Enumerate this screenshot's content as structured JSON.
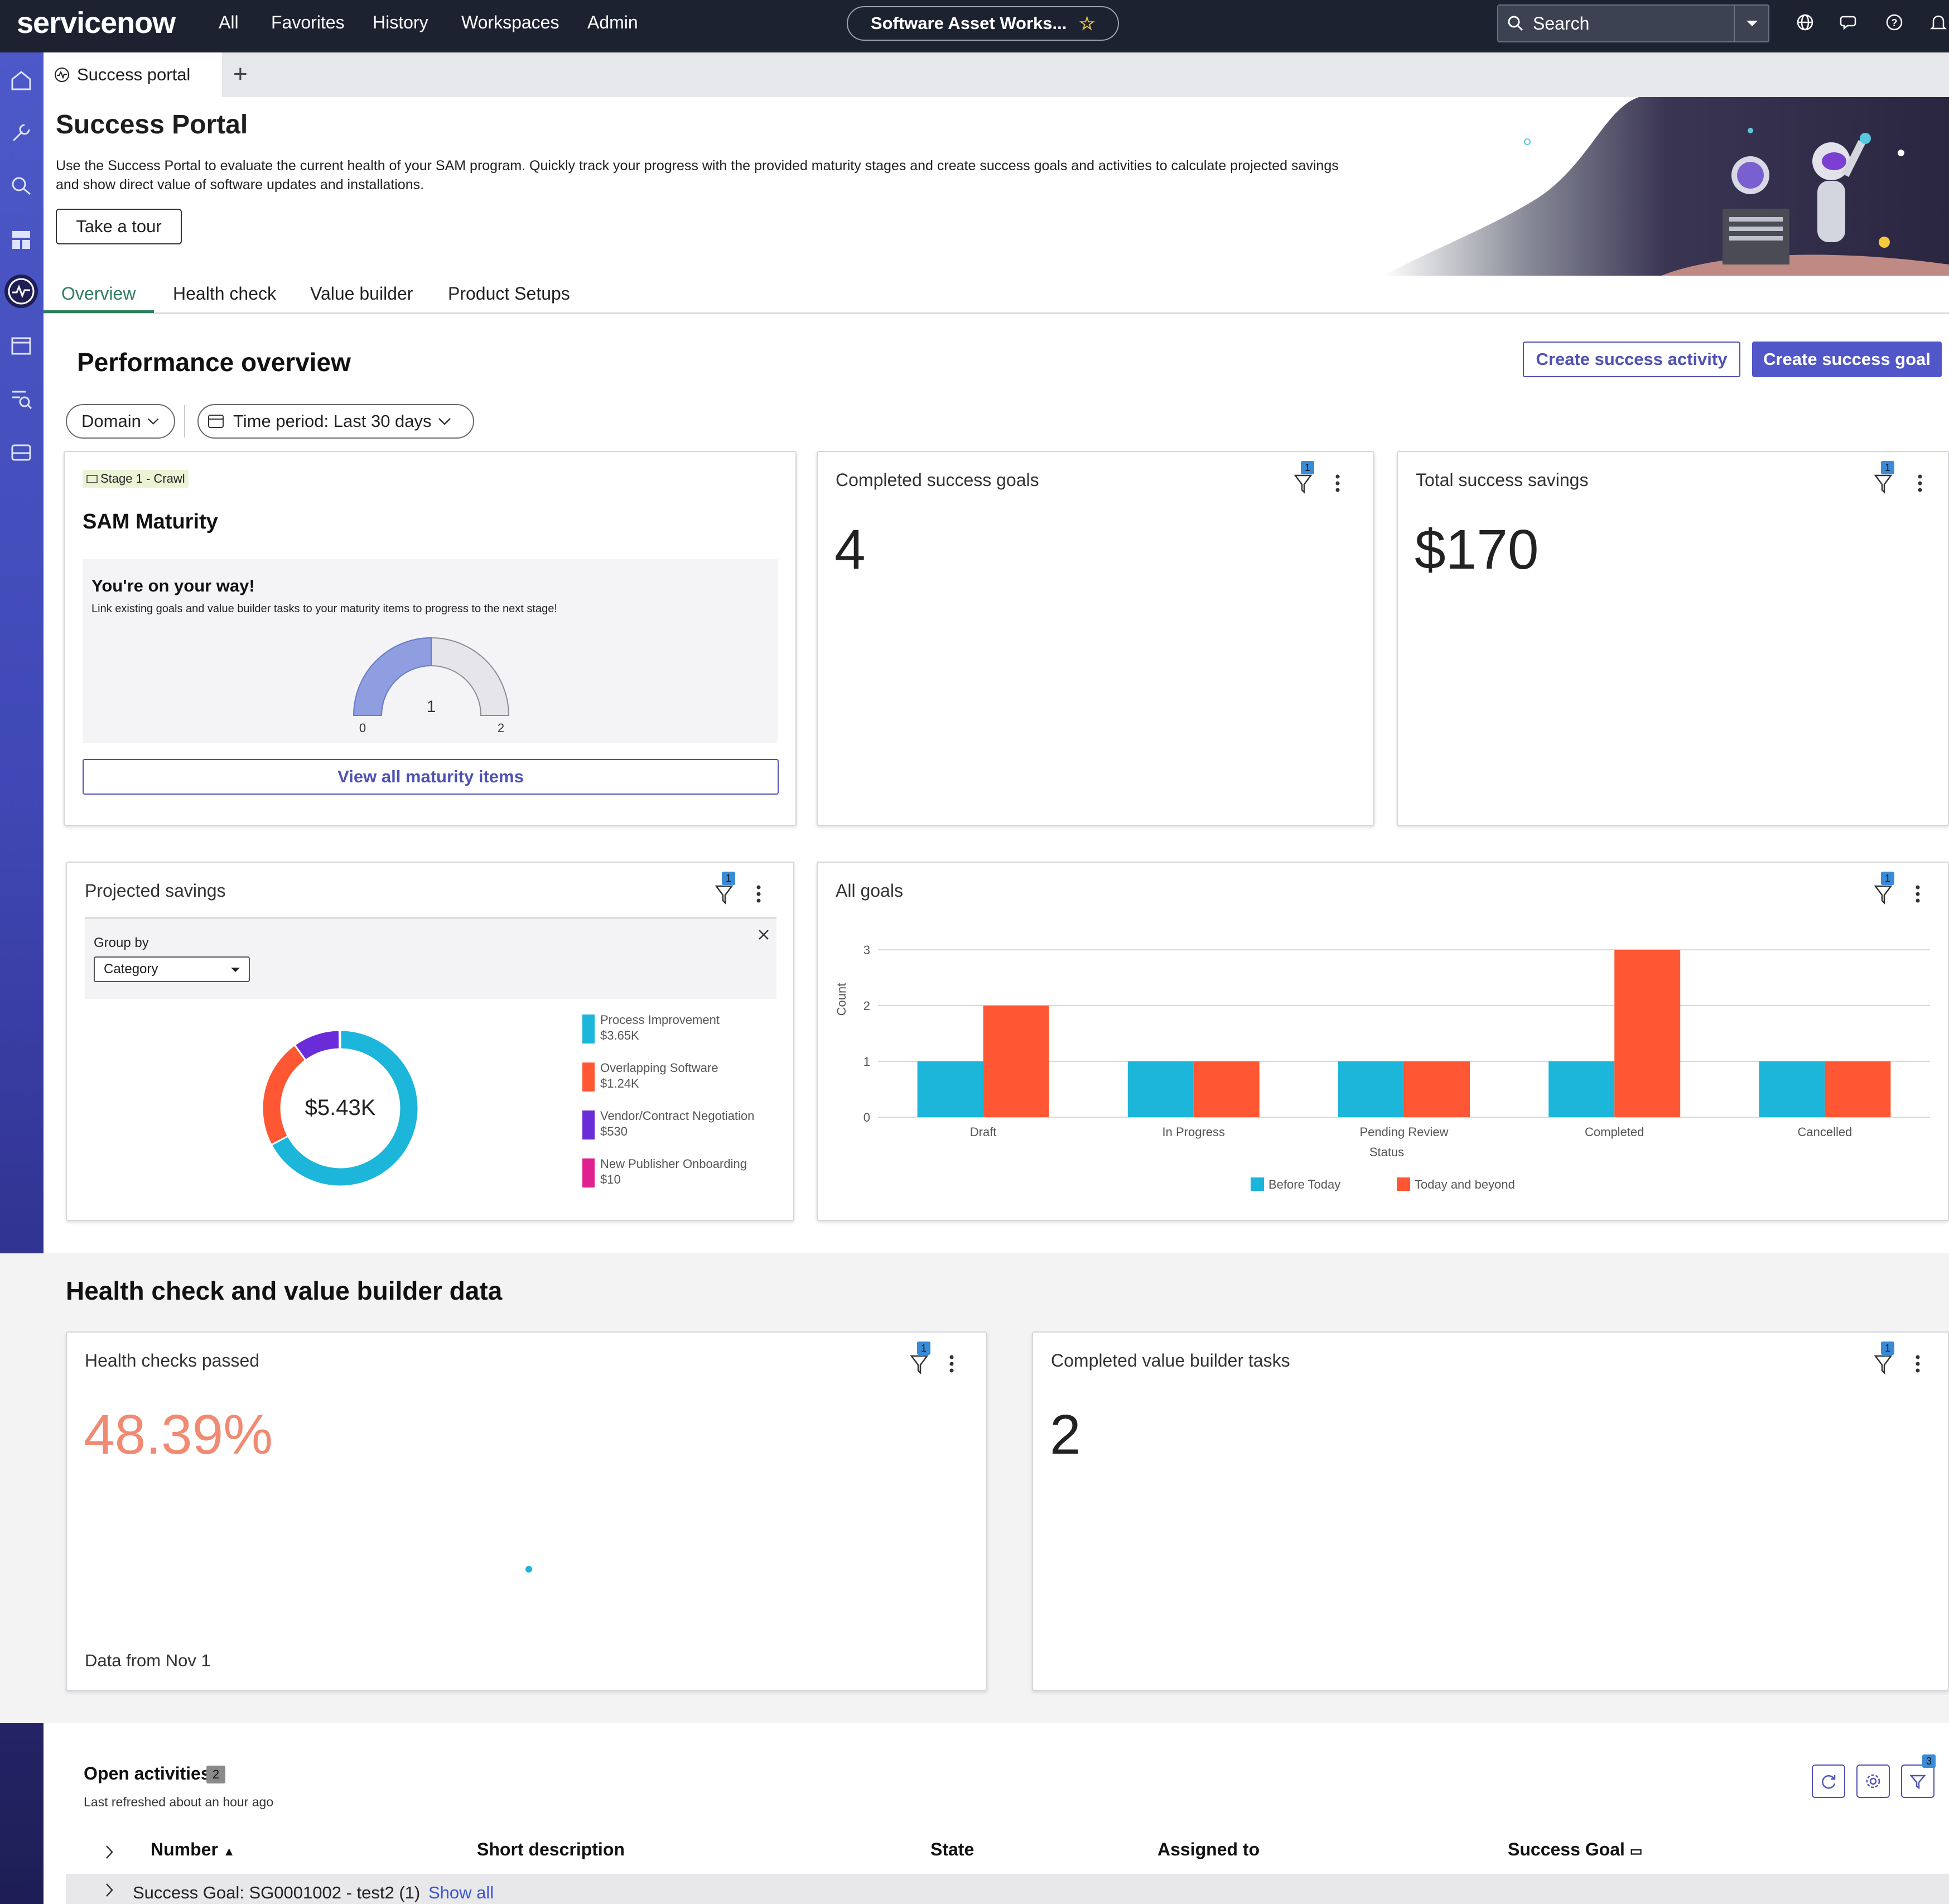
{
  "nav": {
    "logo": "servicenow",
    "items": [
      "All",
      "Favorites",
      "History",
      "Workspaces",
      "Admin"
    ],
    "workspace": "Software Asset Works...",
    "search_placeholder": "Search"
  },
  "tabs": {
    "active": "Success portal"
  },
  "header": {
    "title": "Success Portal",
    "description": "Use the Success Portal to evaluate the current health of your SAM program. Quickly track your progress with the provided maturity stages and create success goals and activities to calculate projected savings and show direct value of software updates and installations.",
    "tour_button": "Take a tour"
  },
  "subtabs": [
    "Overview",
    "Health check",
    "Value builder",
    "Product Setups"
  ],
  "performance": {
    "title": "Performance overview",
    "create_activity": "Create success activity",
    "create_goal": "Create success goal",
    "filter_domain": "Domain",
    "filter_time": "Time period: Last 30 days"
  },
  "maturity": {
    "stage": "Stage 1 - Crawl",
    "title": "SAM Maturity",
    "heading": "You're on your way!",
    "subtext": "Link existing goals and value builder tasks to your maturity items to progress to the next stage!",
    "gauge_value": 1,
    "gauge_min": "0",
    "gauge_max": "2",
    "gauge_label": "1",
    "button": "View all maturity items"
  },
  "completed_goals": {
    "title": "Completed success goals",
    "value": "4",
    "filter_count": "1"
  },
  "total_savings": {
    "title": "Total success savings",
    "value": "$170",
    "filter_count": "1"
  },
  "projected": {
    "title": "Projected savings",
    "filter_count": "1",
    "group_by_label": "Group by",
    "group_by_value": "Category",
    "center": "$5.43K",
    "legend": [
      {
        "name": "Process Improvement",
        "value": "$3.65K",
        "color": "#1bb6d9"
      },
      {
        "name": "Overlapping Software",
        "value": "$1.24K",
        "color": "#ff5733"
      },
      {
        "name": "Vendor/Contract Negotiation",
        "value": "$530",
        "color": "#6a2bd9"
      },
      {
        "name": "New Publisher Onboarding",
        "value": "$10",
        "color": "#e0208f"
      }
    ]
  },
  "chart_data": [
    {
      "type": "pie",
      "categories": [
        "Process Improvement",
        "Overlapping Software",
        "Vendor/Contract Negotiation",
        "New Publisher Onboarding"
      ],
      "values": [
        3650,
        1240,
        530,
        10
      ]
    },
    {
      "type": "bar",
      "title": "All goals",
      "categories": [
        "Draft",
        "In Progress",
        "Pending Review",
        "Completed",
        "Cancelled"
      ],
      "series": [
        {
          "name": "Before Today",
          "values": [
            1,
            1,
            1,
            1,
            1
          ],
          "color": "#1bb6d9"
        },
        {
          "name": "Today and beyond",
          "values": [
            2,
            1,
            1,
            3,
            1
          ],
          "color": "#ff5733"
        }
      ],
      "xlabel": "Status",
      "ylabel": "Count",
      "ylim": [
        0,
        3
      ],
      "yticks": [
        "0",
        "1",
        "2",
        "3"
      ],
      "legend_position": "bottom"
    }
  ],
  "all_goals": {
    "title": "All goals",
    "filter_count": "1"
  },
  "health_section": {
    "title": "Health check and value builder data",
    "health_title": "Health checks passed",
    "health_value": "48.39%",
    "health_footer": "Data from Nov 1",
    "health_filter_count": "1",
    "vb_title": "Completed value builder tasks",
    "vb_value": "2",
    "vb_filter_count": "1"
  },
  "activities": {
    "title": "Open activities",
    "count": "2",
    "refreshed": "Last refreshed about an hour ago",
    "filter_count": "3",
    "columns": [
      "Number",
      "Short description",
      "State",
      "Assigned to",
      "Success Goal"
    ],
    "group_row": "Success Goal: SG0001002 - test2 (1)",
    "show_all": "Show all"
  }
}
